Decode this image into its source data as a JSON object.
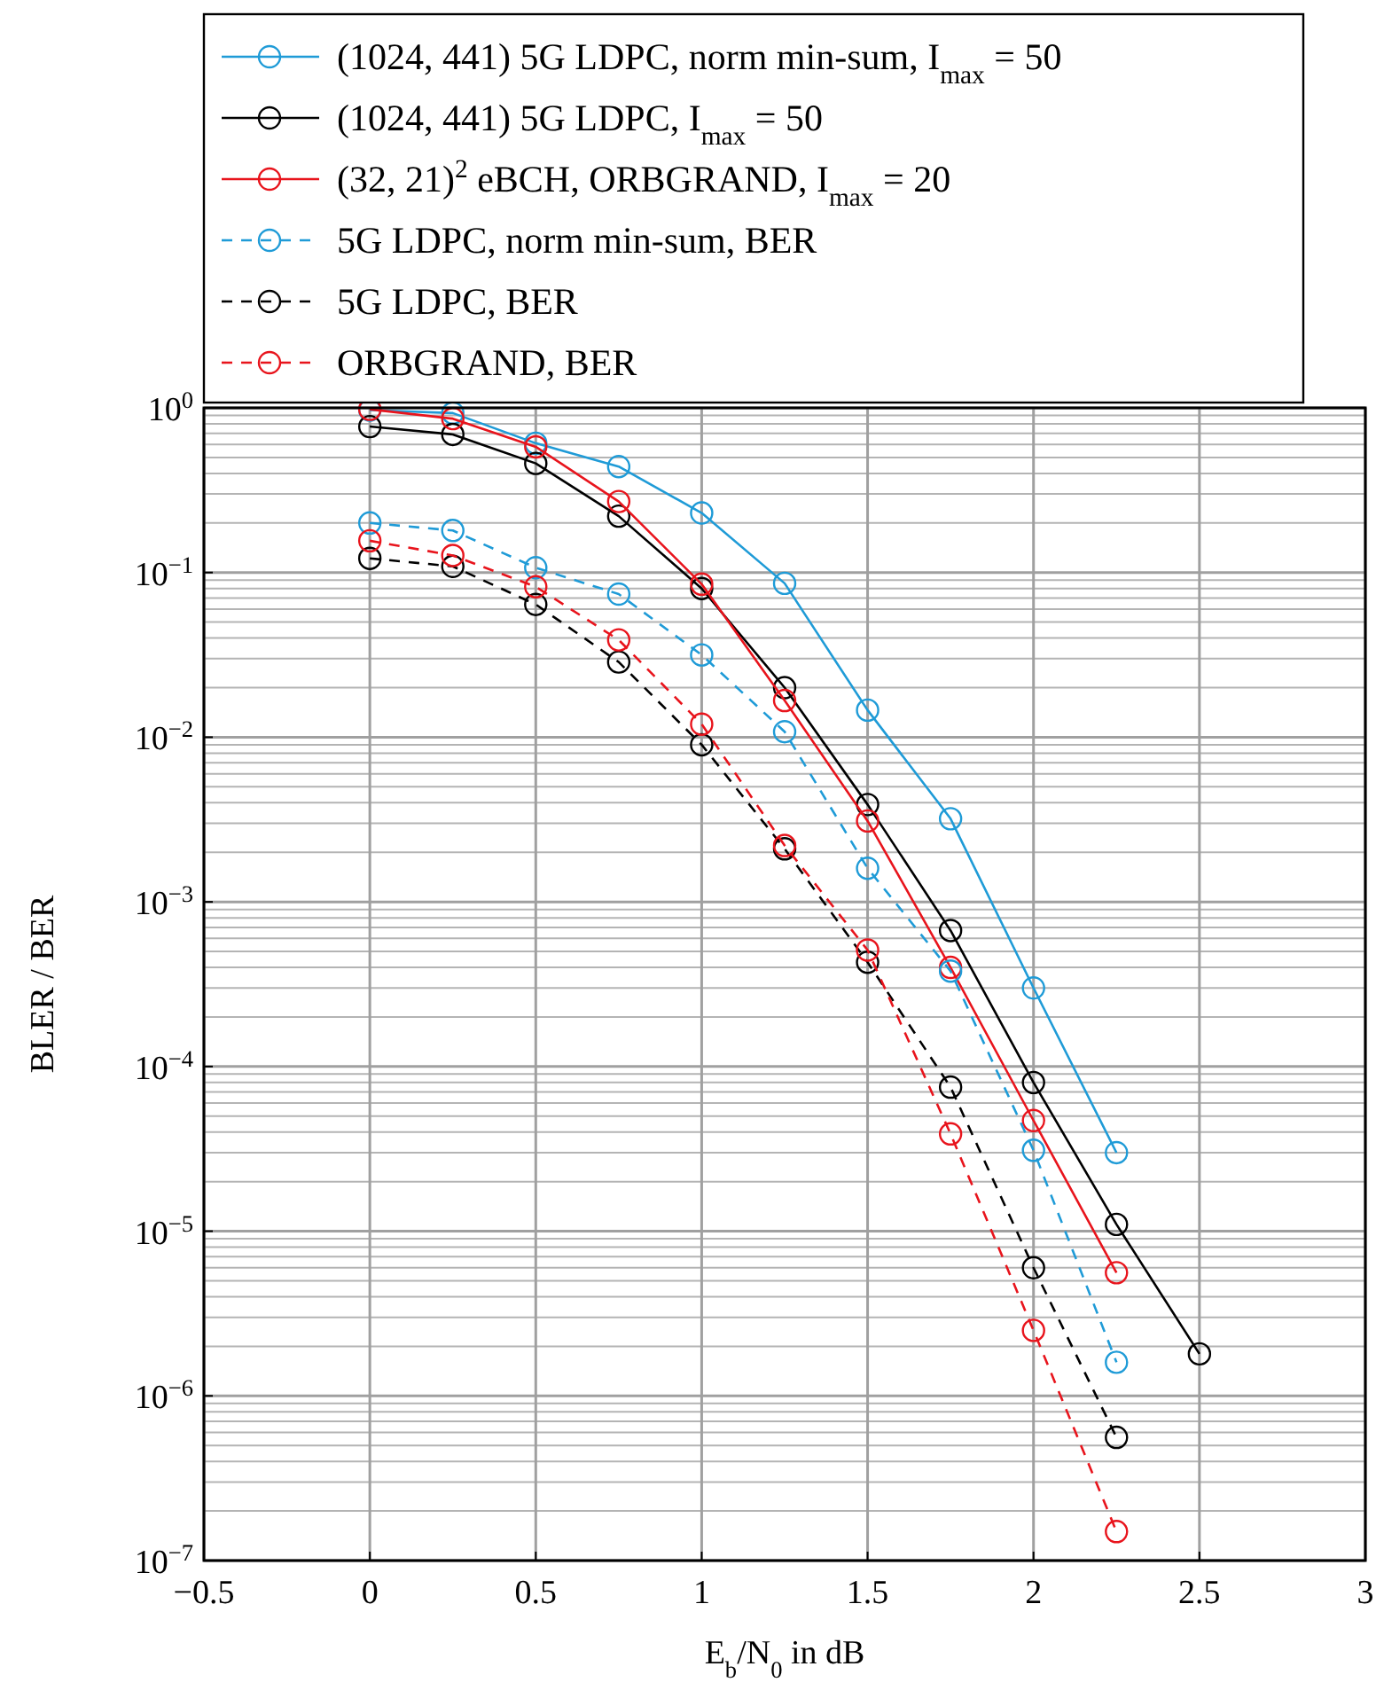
{
  "chart_data": {
    "type": "line",
    "xlabel": "E$_{b}$/N$_{0}$ in dB",
    "ylabel": "BLER / BER",
    "x": [
      0,
      0.25,
      0.5,
      0.75,
      1,
      1.25,
      1.5,
      1.75,
      2,
      2.25,
      2.5
    ],
    "series": [
      {
        "name": "(1024, 441) 5G LDPC, norm min-sum, I$_{max}$ = 50",
        "color": "#1f9bd7",
        "line_style": "solid",
        "values": [
          0.97,
          0.93,
          0.61,
          0.44,
          0.23,
          0.086,
          0.0146,
          0.0032,
          0.0003,
          3e-05,
          null
        ]
      },
      {
        "name": "(1024, 441) 5G LDPC, I$_{max}$ = 50",
        "color": "#000000",
        "line_style": "solid",
        "values": [
          0.77,
          0.69,
          0.46,
          0.22,
          0.08,
          0.02,
          0.0039,
          0.00067,
          8e-05,
          1.1e-05,
          1.8e-06
        ]
      },
      {
        "name": "(32, 21)$^{2}$ eBCH, ORBGRAND, I$_{max}$ = 20",
        "color": "#e8141c",
        "line_style": "solid",
        "values": [
          0.98,
          0.86,
          0.58,
          0.27,
          0.085,
          0.0167,
          0.0031,
          0.0004,
          4.7e-05,
          5.6e-06,
          null
        ]
      },
      {
        "name": "5G LDPC, norm min-sum, BER",
        "color": "#1f9bd7",
        "line_style": "dashed",
        "values": [
          0.2,
          0.18,
          0.107,
          0.074,
          0.0316,
          0.0108,
          0.0016,
          0.00038,
          3.1e-05,
          1.6e-06,
          null
        ]
      },
      {
        "name": "5G LDPC, BER",
        "color": "#000000",
        "line_style": "dashed",
        "values": [
          0.122,
          0.109,
          0.064,
          0.0286,
          0.009,
          0.0021,
          0.00043,
          7.5e-05,
          6e-06,
          5.6e-07,
          null
        ]
      },
      {
        "name": "ORBGRAND, BER",
        "color": "#e8141c",
        "line_style": "dashed",
        "values": [
          0.156,
          0.127,
          0.082,
          0.039,
          0.012,
          0.0022,
          0.00051,
          3.9e-05,
          2.5e-06,
          1.5e-07,
          null
        ]
      }
    ],
    "marker": "circle",
    "log": "y",
    "grid": true,
    "legend": "top",
    "xlim": [
      -0.5,
      3
    ],
    "xticks": [
      {
        "value": -0.5,
        "label": "−0.5"
      },
      0,
      0.5,
      1,
      1.5,
      2,
      2.5,
      3
    ],
    "ylim": [
      1e-07,
      1
    ],
    "yticks": [
      {
        "value": 1,
        "label": "10$^{0}$"
      },
      {
        "value": 0.1,
        "label": "10$^{−1}$"
      },
      {
        "value": 0.01,
        "label": "10$^{−2}$"
      },
      {
        "value": 0.001,
        "label": "10$^{−3}$"
      },
      {
        "value": 0.0001,
        "label": "10$^{−4}$"
      },
      {
        "value": 1e-05,
        "label": "10$^{−5}$"
      },
      {
        "value": 1e-06,
        "label": "10$^{−6}$"
      },
      {
        "value": 1e-07,
        "label": "10$^{−7}$"
      }
    ]
  }
}
